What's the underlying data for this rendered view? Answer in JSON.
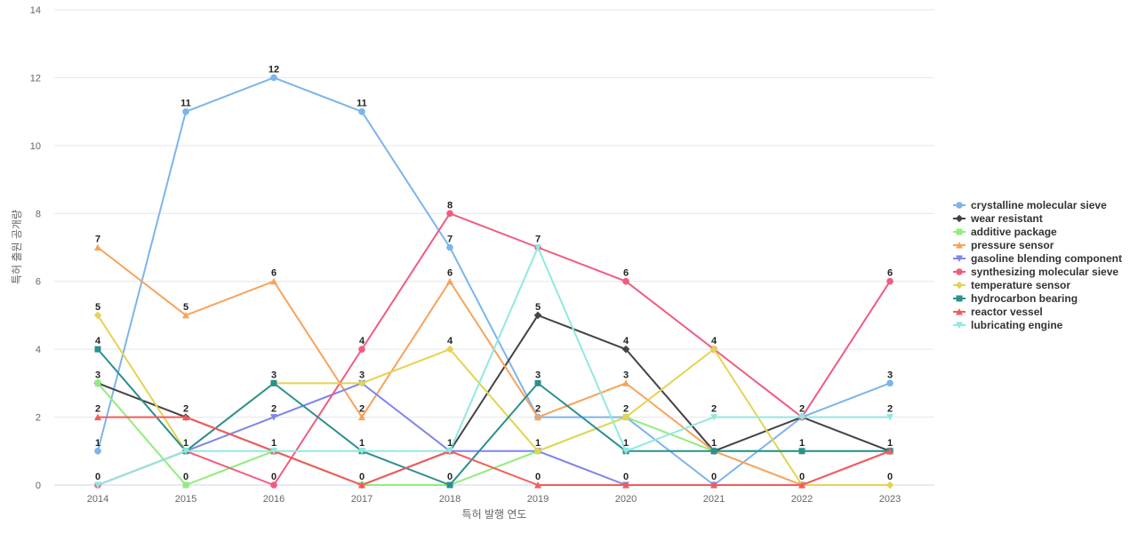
{
  "chart_data": {
    "type": "line",
    "x": [
      2014,
      2015,
      2016,
      2017,
      2018,
      2019,
      2020,
      2021,
      2022,
      2023
    ],
    "xlabel": "특허 발행 연도",
    "ylabel": "특허 출원 공개량",
    "ylim": [
      0,
      14
    ],
    "yticks": [
      0,
      2,
      4,
      6,
      8,
      10,
      12,
      14
    ],
    "grid": true,
    "legend_position": "right",
    "series": [
      {
        "name": "crystalline molecular sieve",
        "color": "#7cb5ec",
        "marker": "circle",
        "values": [
          1,
          11,
          12,
          11,
          7,
          2,
          2,
          0,
          2,
          3
        ]
      },
      {
        "name": "wear resistant",
        "color": "#434348",
        "marker": "diamond",
        "values": [
          3,
          2,
          1,
          0,
          1,
          5,
          4,
          1,
          2,
          1
        ]
      },
      {
        "name": "additive package",
        "color": "#90ed7d",
        "marker": "square",
        "values": [
          3,
          0,
          1,
          0,
          0,
          1,
          2,
          1,
          1,
          1
        ]
      },
      {
        "name": "pressure sensor",
        "color": "#f7a35c",
        "marker": "triangle",
        "values": [
          7,
          5,
          6,
          2,
          6,
          2,
          3,
          1,
          0,
          1
        ]
      },
      {
        "name": "gasoline blending component",
        "color": "#8085e9",
        "marker": "triangle-down",
        "values": [
          0,
          1,
          2,
          3,
          1,
          1,
          0,
          0,
          0,
          1
        ]
      },
      {
        "name": "synthesizing molecular sieve",
        "color": "#f15c80",
        "marker": "circle",
        "values": [
          0,
          1,
          0,
          4,
          8,
          7,
          6,
          4,
          2,
          6
        ]
      },
      {
        "name": "temperature sensor",
        "color": "#e4d354",
        "marker": "diamond",
        "values": [
          5,
          1,
          3,
          3,
          4,
          1,
          2,
          4,
          0,
          0
        ]
      },
      {
        "name": "hydrocarbon bearing",
        "color": "#2b908f",
        "marker": "square",
        "values": [
          4,
          1,
          3,
          1,
          0,
          3,
          1,
          1,
          1,
          1
        ]
      },
      {
        "name": "reactor vessel",
        "color": "#f45b5b",
        "marker": "triangle",
        "values": [
          2,
          2,
          1,
          0,
          1,
          0,
          0,
          0,
          0,
          1
        ]
      },
      {
        "name": "lubricating engine",
        "color": "#91e8e1",
        "marker": "triangle-down",
        "values": [
          0,
          1,
          1,
          1,
          1,
          7,
          1,
          2,
          2,
          2
        ]
      }
    ],
    "data_labels": [
      [
        2014,
        7,
        "7"
      ],
      [
        2014,
        5,
        "5"
      ],
      [
        2014,
        4,
        "4"
      ],
      [
        2014,
        3,
        "3"
      ],
      [
        2014,
        2,
        "2"
      ],
      [
        2014,
        1,
        "1"
      ],
      [
        2014,
        0,
        "0"
      ],
      [
        2015,
        11,
        "11"
      ],
      [
        2015,
        5,
        "5"
      ],
      [
        2015,
        2,
        "2"
      ],
      [
        2015,
        1,
        "1"
      ],
      [
        2015,
        0,
        "0"
      ],
      [
        2016,
        12,
        "12"
      ],
      [
        2016,
        6,
        "6"
      ],
      [
        2016,
        3,
        "3"
      ],
      [
        2016,
        2,
        "2"
      ],
      [
        2016,
        1,
        "1"
      ],
      [
        2016,
        0,
        "0"
      ],
      [
        2017,
        11,
        "11"
      ],
      [
        2017,
        4,
        "4"
      ],
      [
        2017,
        3,
        "3"
      ],
      [
        2017,
        2,
        "2"
      ],
      [
        2017,
        1,
        "1"
      ],
      [
        2017,
        0,
        "0"
      ],
      [
        2018,
        8,
        "8"
      ],
      [
        2018,
        7,
        "7"
      ],
      [
        2018,
        6,
        "6"
      ],
      [
        2018,
        4,
        "4"
      ],
      [
        2018,
        1,
        "1"
      ],
      [
        2018,
        0,
        "0"
      ],
      [
        2019,
        7,
        "7"
      ],
      [
        2019,
        5,
        "5"
      ],
      [
        2019,
        3,
        "3"
      ],
      [
        2019,
        2,
        "2"
      ],
      [
        2019,
        1,
        "1"
      ],
      [
        2019,
        0,
        "0"
      ],
      [
        2020,
        6,
        "6"
      ],
      [
        2020,
        4,
        "4"
      ],
      [
        2020,
        3,
        "3"
      ],
      [
        2020,
        2,
        "2"
      ],
      [
        2020,
        1,
        "1"
      ],
      [
        2020,
        0,
        "0"
      ],
      [
        2021,
        4,
        "4"
      ],
      [
        2021,
        2,
        "2"
      ],
      [
        2021,
        1,
        "1"
      ],
      [
        2021,
        0,
        "0"
      ],
      [
        2022,
        2,
        "2"
      ],
      [
        2022,
        1,
        "1"
      ],
      [
        2022,
        0,
        "0"
      ],
      [
        2023,
        6,
        "6"
      ],
      [
        2023,
        3,
        "3"
      ],
      [
        2023,
        2,
        "2"
      ],
      [
        2023,
        1,
        "1"
      ],
      [
        2023,
        0,
        "0"
      ]
    ]
  }
}
